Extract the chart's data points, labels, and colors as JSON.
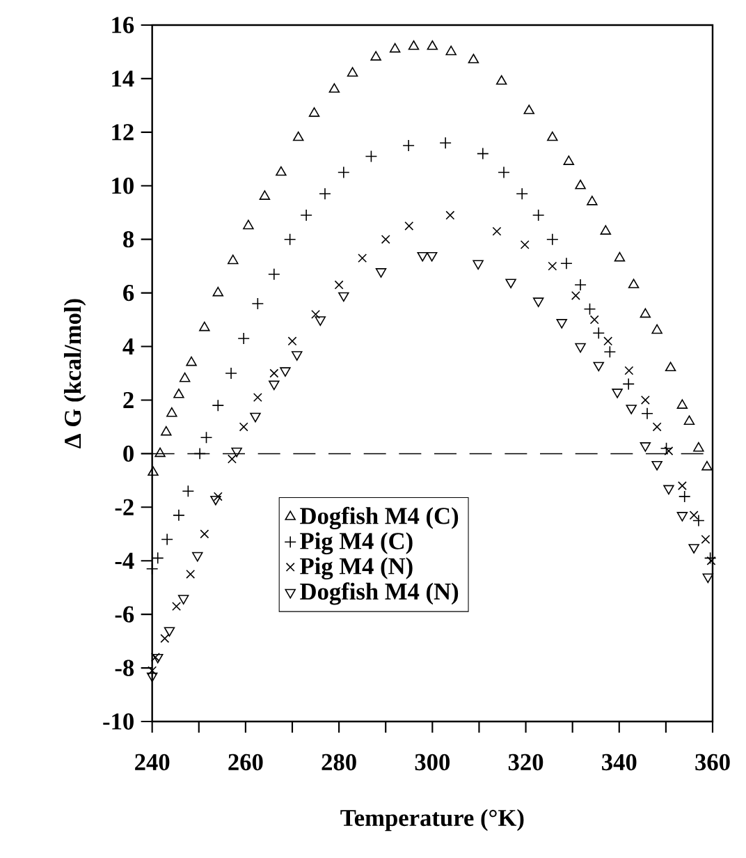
{
  "chart_data": {
    "type": "scatter",
    "xlabel": "Temperature (°K)",
    "ylabel": "Δ G (kcal/mol)",
    "xlim": [
      240,
      360
    ],
    "ylim": [
      -10,
      16
    ],
    "xticks": [
      240,
      {
        "value": 250,
        "label": null
      },
      260,
      {
        "value": 270,
        "label": null
      },
      280,
      {
        "value": 290,
        "label": null
      },
      300,
      {
        "value": 310,
        "label": null
      },
      320,
      {
        "value": 330,
        "label": null
      },
      340,
      {
        "value": 350,
        "label": null
      },
      360
    ],
    "yticks": [
      -10,
      -8,
      -6,
      -4,
      -2,
      0,
      2,
      4,
      6,
      8,
      10,
      12,
      14,
      16
    ],
    "legend": "bottom",
    "ref_lines": [
      {
        "axis": "y",
        "value": 0,
        "line_style": "dashed",
        "color": "#000000"
      }
    ],
    "series": [
      {
        "name": "Dogfish M4 (C)",
        "color": "#000000",
        "marker": "triangle",
        "x": [
          240.2,
          241.7,
          243.0,
          244.2,
          245.7,
          247.0,
          248.4,
          251.2,
          254.1,
          257.3,
          260.6,
          264.1,
          267.6,
          271.3,
          274.7,
          279.0,
          282.9,
          287.9,
          292.0,
          296.0,
          300.0,
          304.0,
          308.8,
          314.8,
          320.7,
          325.7,
          329.2,
          331.7,
          334.2,
          337.1,
          340.1,
          343.1,
          345.6,
          348.1,
          351.0,
          353.5,
          355.0,
          357.0,
          358.8
        ],
        "values": [
          -0.7,
          0.0,
          0.8,
          1.5,
          2.2,
          2.8,
          3.4,
          4.7,
          6.0,
          7.2,
          8.5,
          9.6,
          10.5,
          11.8,
          12.7,
          13.6,
          14.2,
          14.8,
          15.1,
          15.2,
          15.2,
          15.0,
          14.7,
          13.9,
          12.8,
          11.8,
          10.9,
          10.0,
          9.4,
          8.3,
          7.3,
          6.3,
          5.2,
          4.6,
          3.2,
          1.8,
          1.2,
          0.2,
          -0.5
        ]
      },
      {
        "name": "Pig M4 (C)",
        "color": "#000000",
        "marker": "plus",
        "x": [
          240.0,
          241.2,
          243.2,
          245.7,
          247.7,
          250.2,
          251.6,
          254.1,
          256.9,
          259.6,
          262.6,
          266.1,
          269.5,
          273.0,
          277.0,
          281.0,
          286.9,
          294.9,
          302.8,
          310.8,
          315.3,
          319.2,
          322.7,
          325.7,
          328.7,
          331.7,
          333.7,
          335.6,
          338.0,
          342.0,
          346.0,
          350.1,
          354.0,
          357.0,
          359.5
        ],
        "values": [
          -4.3,
          -3.9,
          -3.2,
          -2.3,
          -1.4,
          0.0,
          0.6,
          1.8,
          3.0,
          4.3,
          5.6,
          6.7,
          8.0,
          8.9,
          9.7,
          10.5,
          11.1,
          11.5,
          11.6,
          11.2,
          10.5,
          9.7,
          8.9,
          8.0,
          7.1,
          6.3,
          5.4,
          4.5,
          3.8,
          2.6,
          1.5,
          0.2,
          -1.6,
          -2.5,
          -3.9
        ]
      },
      {
        "name": "Pig M4 (N)",
        "color": "#000000",
        "marker": "x",
        "x": [
          240.0,
          240.7,
          242.7,
          245.2,
          248.2,
          251.2,
          254.1,
          257.1,
          259.6,
          262.6,
          266.1,
          270.0,
          275.0,
          280.0,
          285.0,
          290.0,
          295.0,
          303.8,
          313.8,
          319.8,
          325.7,
          330.7,
          334.7,
          337.6,
          342.1,
          345.6,
          348.1,
          350.6,
          353.5,
          356.0,
          358.5,
          359.7
        ],
        "values": [
          -8.1,
          -7.6,
          -6.9,
          -5.7,
          -4.5,
          -3.0,
          -1.6,
          -0.2,
          1.0,
          2.1,
          3.0,
          4.2,
          5.2,
          6.3,
          7.3,
          8.0,
          8.5,
          8.9,
          8.3,
          7.8,
          7.0,
          5.9,
          5.0,
          4.2,
          3.1,
          2.0,
          1.0,
          0.1,
          -1.2,
          -2.3,
          -3.2,
          -4.0
        ]
      },
      {
        "name": "Dogfish M4 (N)",
        "color": "#000000",
        "marker": "triangle-down",
        "x": [
          240.0,
          241.2,
          243.7,
          246.7,
          249.7,
          253.6,
          258.1,
          262.1,
          266.1,
          268.5,
          271.0,
          276.0,
          281.0,
          289.0,
          297.9,
          299.9,
          309.8,
          316.8,
          322.7,
          327.7,
          331.7,
          335.6,
          339.6,
          342.6,
          345.6,
          348.1,
          350.6,
          353.5,
          356.0,
          359.0
        ],
        "values": [
          -8.3,
          -7.6,
          -6.6,
          -5.4,
          -3.8,
          -1.7,
          0.1,
          1.4,
          2.6,
          3.1,
          3.7,
          5.0,
          5.9,
          6.8,
          7.4,
          7.4,
          7.1,
          6.4,
          5.7,
          4.9,
          4.0,
          3.3,
          2.3,
          1.7,
          0.3,
          -0.4,
          -1.3,
          -2.3,
          -3.5,
          -4.6
        ]
      }
    ]
  }
}
